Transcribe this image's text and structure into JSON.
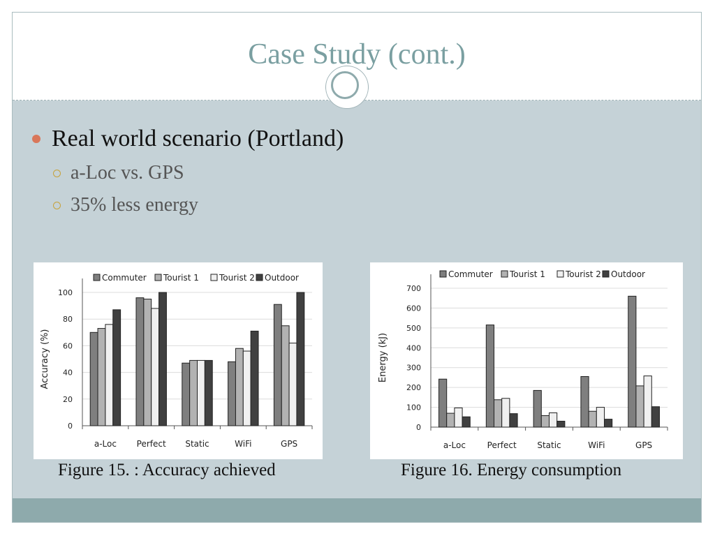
{
  "slide": {
    "title": "Case Study (cont.)",
    "bullet": "Real world scenario (Portland)",
    "sub_bullets": [
      "a-Loc vs. GPS",
      "35% less energy"
    ],
    "captions": [
      "Figure 15. : Accuracy achieved",
      "Figure 16. Energy consumption"
    ],
    "colors": {
      "title": "#7a9fa1",
      "background": "#c5d2d7",
      "bullet": "#d9775a",
      "footer_band": "#8eaaac"
    }
  },
  "chart_data": [
    {
      "type": "bar",
      "categories": [
        "a-Loc",
        "Perfect",
        "Static",
        "WiFi",
        "GPS"
      ],
      "series": [
        {
          "name": "Commuter",
          "color": "#7f7f7f",
          "values": [
            70,
            96,
            47,
            48,
            91
          ]
        },
        {
          "name": "Tourist 1",
          "color": "#b2b2b2",
          "values": [
            73,
            95,
            49,
            58,
            75
          ]
        },
        {
          "name": "Tourist 2",
          "color": "#f0f0f0",
          "values": [
            76,
            88,
            49,
            56,
            62
          ]
        },
        {
          "name": "Outdoor",
          "color": "#404040",
          "values": [
            87,
            100,
            49,
            71,
            100
          ]
        }
      ],
      "ylabel": "Accuracy (%)",
      "ylim": [
        0,
        100
      ],
      "yticks": [
        0,
        20,
        40,
        60,
        80,
        100
      ],
      "grid": true,
      "legend": "top"
    },
    {
      "type": "bar",
      "categories": [
        "a-Loc",
        "Perfect",
        "Static",
        "WiFi",
        "GPS"
      ],
      "series": [
        {
          "name": "Commuter",
          "color": "#7f7f7f",
          "values": [
            242,
            515,
            185,
            255,
            660
          ]
        },
        {
          "name": "Tourist 1",
          "color": "#b2b2b2",
          "values": [
            70,
            138,
            58,
            80,
            208
          ]
        },
        {
          "name": "Tourist 2",
          "color": "#f0f0f0",
          "values": [
            97,
            145,
            72,
            100,
            258
          ]
        },
        {
          "name": "Outdoor",
          "color": "#404040",
          "values": [
            52,
            68,
            30,
            40,
            103
          ]
        }
      ],
      "ylabel": "Energy (kJ)",
      "ylim": [
        0,
        700
      ],
      "yticks": [
        0,
        100,
        200,
        300,
        400,
        500,
        600,
        700
      ],
      "grid": true,
      "legend": "top"
    }
  ]
}
